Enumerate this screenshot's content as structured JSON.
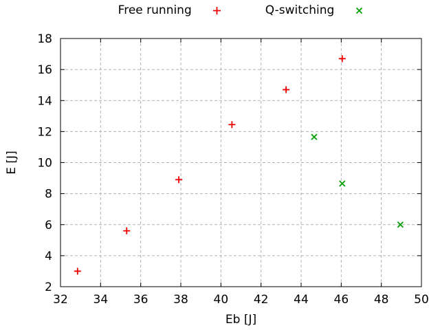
{
  "chart_data": {
    "type": "scatter",
    "title": "",
    "xlabel": "Eb [J]",
    "ylabel": "E [J]",
    "xlim": [
      32,
      50
    ],
    "ylim": [
      2,
      18
    ],
    "xticks": [
      32,
      34,
      36,
      38,
      40,
      42,
      44,
      46,
      48,
      50
    ],
    "yticks": [
      2,
      4,
      6,
      8,
      10,
      12,
      14,
      16,
      18
    ],
    "grid": true,
    "legend_position": "top-center-outside",
    "series": [
      {
        "name": "Free running",
        "marker": "plus",
        "color": "#ee0000",
        "points": [
          [
            32.85,
            3.0
          ],
          [
            35.3,
            5.6
          ],
          [
            37.9,
            8.9
          ],
          [
            40.55,
            12.45
          ],
          [
            43.25,
            14.7
          ],
          [
            46.05,
            16.7
          ]
        ]
      },
      {
        "name": "Q-switching",
        "marker": "cross",
        "color": "#00a000",
        "points": [
          [
            44.65,
            11.65
          ],
          [
            46.05,
            8.65
          ],
          [
            48.95,
            6.0
          ]
        ]
      }
    ],
    "colors": {
      "grid": "#b0b0b0",
      "axis": "#000000",
      "text": "#000000",
      "background": "#ffffff"
    }
  }
}
